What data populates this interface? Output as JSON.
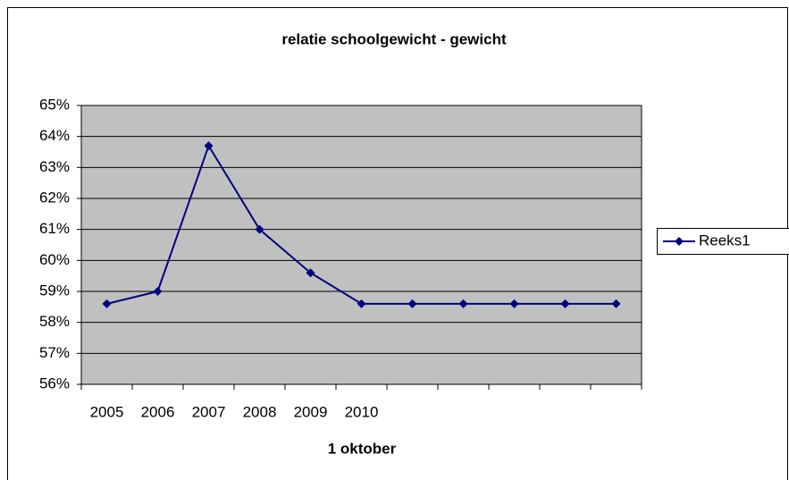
{
  "chart_data": {
    "type": "line",
    "title": "relatie schoolgewicht - gewicht",
    "x_label": "1 oktober",
    "categories": [
      "2005",
      "2006",
      "2007",
      "2008",
      "2009",
      "2010",
      null,
      null,
      null,
      null,
      null
    ],
    "series": [
      {
        "name": "Reeks1",
        "color": "#000080",
        "values": [
          58.6,
          59.0,
          63.7,
          61.0,
          59.6,
          58.6,
          58.6,
          58.6,
          58.6,
          58.6,
          58.6
        ]
      }
    ],
    "ylim": [
      56,
      65
    ],
    "yticks": [
      {
        "value": 56,
        "label": "56%"
      },
      {
        "value": 57,
        "label": "57%"
      },
      {
        "value": 58,
        "label": "58%"
      },
      {
        "value": 59,
        "label": "59%"
      },
      {
        "value": 60,
        "label": "60%"
      },
      {
        "value": 61,
        "label": "61%"
      },
      {
        "value": 62,
        "label": "62%"
      },
      {
        "value": 63,
        "label": "63%"
      },
      {
        "value": 64,
        "label": "64%"
      },
      {
        "value": 65,
        "label": "65%"
      }
    ],
    "grid": true,
    "legend": "right"
  }
}
